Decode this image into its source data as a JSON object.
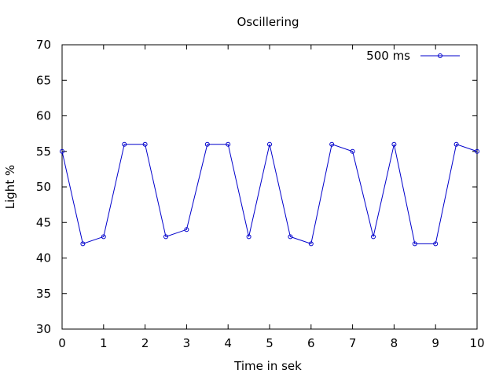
{
  "chart_data": {
    "type": "line",
    "title": "Oscillering",
    "xlabel": "Time in sek",
    "ylabel": "Light %",
    "xlim": [
      0,
      10
    ],
    "ylim": [
      30,
      70
    ],
    "x_ticks": [
      0,
      1,
      2,
      3,
      4,
      5,
      6,
      7,
      8,
      9,
      10
    ],
    "y_ticks": [
      30,
      35,
      40,
      45,
      50,
      55,
      60,
      65,
      70
    ],
    "x_tick_labels": [
      "0",
      "1",
      "2",
      "3",
      "4",
      "5",
      "6",
      "7",
      "8",
      "9",
      "10"
    ],
    "y_tick_labels": [
      "30",
      "35",
      "40",
      "45",
      "50",
      "55",
      "60",
      "65",
      "70"
    ],
    "grid": false,
    "legend": "top-right",
    "series": [
      {
        "name": "500 ms",
        "color": "#0000cc",
        "marker": "open-circle",
        "x": [
          0,
          0.5,
          1,
          1.5,
          2,
          2.5,
          3,
          3.5,
          4,
          4.5,
          5,
          5.5,
          6,
          6.5,
          7,
          7.5,
          8,
          8.5,
          9,
          9.5,
          10
        ],
        "y": [
          55,
          42,
          43,
          56,
          56,
          43,
          44,
          56,
          56,
          43,
          56,
          43,
          42,
          56,
          55,
          43,
          56,
          42,
          42,
          56,
          55
        ]
      }
    ]
  }
}
